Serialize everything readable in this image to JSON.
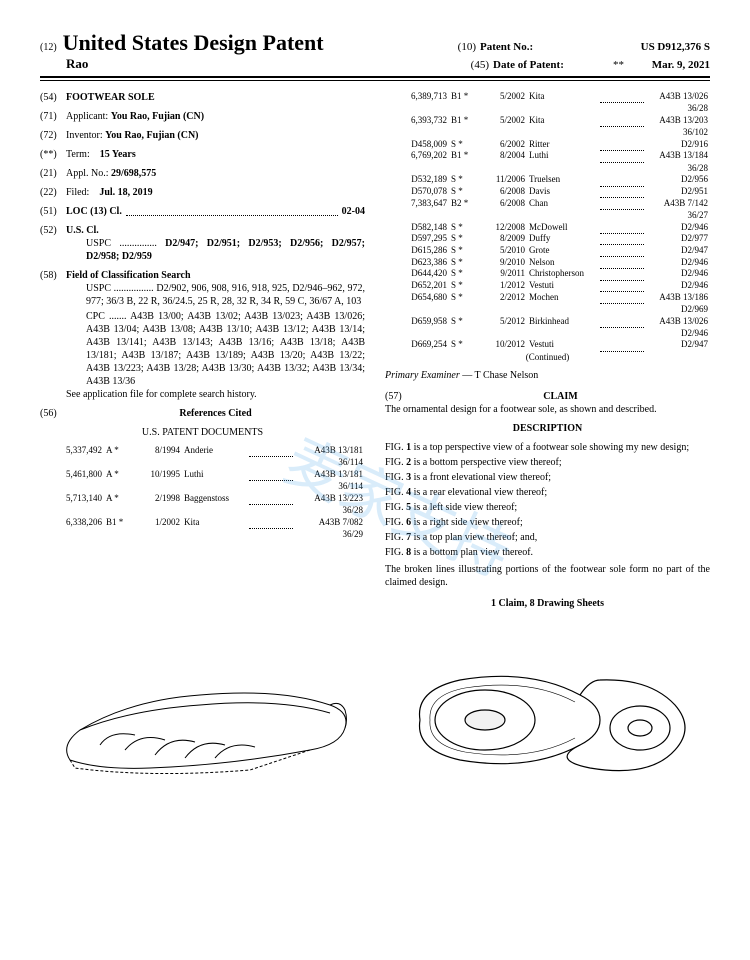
{
  "header": {
    "code12": "(12)",
    "title": "United States Design Patent",
    "name": "Rao",
    "code10": "(10)",
    "patentNoLabel": "Patent No.:",
    "patentNo": "US D912,376 S",
    "code45": "(45)",
    "dateLabel": "Date of Patent:",
    "stars": "**",
    "date": "Mar. 9, 2021"
  },
  "left": {
    "f54": {
      "num": "(54)",
      "label": "FOOTWEAR SOLE"
    },
    "f71": {
      "num": "(71)",
      "label": "Applicant:",
      "val": "You Rao, Fujian (CN)"
    },
    "f72": {
      "num": "(72)",
      "label": "Inventor:",
      "val": "You Rao, Fujian (CN)"
    },
    "fTerm": {
      "num": "(**)",
      "label": "Term:",
      "val": "15 Years"
    },
    "f21": {
      "num": "(21)",
      "label": "Appl. No.:",
      "val": "29/698,575"
    },
    "f22": {
      "num": "(22)",
      "label": "Filed:",
      "val": "Jul. 18, 2019"
    },
    "f51": {
      "num": "(51)",
      "label": "LOC (13) Cl.",
      "val": "02-04"
    },
    "f52": {
      "num": "(52)",
      "label": "U.S. Cl.",
      "uspc": "USPC ...............",
      "uspcVal": "D2/947; D2/951; D2/953; D2/956; D2/957; D2/958; D2/959"
    },
    "f58": {
      "num": "(58)",
      "label": "Field of Classification Search",
      "uspc": "USPC ................ D2/902, 906, 908, 916, 918, 925, D2/946–962, 972, 977; 36/3 B, 22 R, 36/24.5, 25 R, 28, 32 R, 34 R, 59 C, 36/67 A, 103",
      "cpc": "CPC ....... A43B 13/00; A43B 13/02; A43B 13/023; A43B 13/026; A43B 13/04; A43B 13/08; A43B 13/10; A43B 13/12; A43B 13/14; A43B 13/141; A43B 13/143; A43B 13/16; A43B 13/18; A43B 13/181; A43B 13/187; A43B 13/189; A43B 13/20; A43B 13/22; A43B 13/223; A43B 13/28; A43B 13/30; A43B 13/32; A43B 13/34; A43B 13/36",
      "see": "See application file for complete search history."
    },
    "f56": {
      "num": "(56)",
      "label": "References Cited",
      "sub": "U.S. PATENT DOCUMENTS"
    },
    "refs1": [
      {
        "no": "5,337,492",
        "t": "A *",
        "d": "8/1994",
        "n": "Anderie",
        "c": "A43B 13/181",
        "s": "36/114"
      },
      {
        "no": "5,461,800",
        "t": "A *",
        "d": "10/1995",
        "n": "Luthi",
        "c": "A43B 13/181",
        "s": "36/114"
      },
      {
        "no": "5,713,140",
        "t": "A *",
        "d": "2/1998",
        "n": "Baggenstoss",
        "c": "A43B 13/223",
        "s": "36/28"
      },
      {
        "no": "6,338,206",
        "t": "B1 *",
        "d": "1/2002",
        "n": "Kita",
        "c": "A43B 7/082",
        "s": "36/29"
      }
    ]
  },
  "right": {
    "refs2": [
      {
        "no": "6,389,713",
        "t": "B1 *",
        "d": "5/2002",
        "n": "Kita",
        "c": "A43B 13/026",
        "s": "36/28"
      },
      {
        "no": "6,393,732",
        "t": "B1 *",
        "d": "5/2002",
        "n": "Kita",
        "c": "A43B 13/203",
        "s": "36/102"
      },
      {
        "no": "D458,009",
        "t": "S *",
        "d": "6/2002",
        "n": "Ritter",
        "c": "D2/916",
        "s": ""
      },
      {
        "no": "6,769,202",
        "t": "B1 *",
        "d": "8/2004",
        "n": "Luthi",
        "c": "A43B 13/184",
        "s": "36/28"
      },
      {
        "no": "D532,189",
        "t": "S *",
        "d": "11/2006",
        "n": "Truelsen",
        "c": "D2/956",
        "s": ""
      },
      {
        "no": "D570,078",
        "t": "S *",
        "d": "6/2008",
        "n": "Davis",
        "c": "D2/951",
        "s": ""
      },
      {
        "no": "7,383,647",
        "t": "B2 *",
        "d": "6/2008",
        "n": "Chan",
        "c": "A43B 7/142",
        "s": "36/27"
      },
      {
        "no": "D582,148",
        "t": "S *",
        "d": "12/2008",
        "n": "McDowell",
        "c": "D2/946",
        "s": ""
      },
      {
        "no": "D597,295",
        "t": "S *",
        "d": "8/2009",
        "n": "Duffy",
        "c": "D2/977",
        "s": ""
      },
      {
        "no": "D615,286",
        "t": "S *",
        "d": "5/2010",
        "n": "Grote",
        "c": "D2/947",
        "s": ""
      },
      {
        "no": "D623,386",
        "t": "S *",
        "d": "9/2010",
        "n": "Nelson",
        "c": "D2/946",
        "s": ""
      },
      {
        "no": "D644,420",
        "t": "S *",
        "d": "9/2011",
        "n": "Christopherson",
        "c": "D2/946",
        "s": ""
      },
      {
        "no": "D652,201",
        "t": "S *",
        "d": "1/2012",
        "n": "Vestuti",
        "c": "D2/946",
        "s": ""
      },
      {
        "no": "D654,680",
        "t": "S *",
        "d": "2/2012",
        "n": "Mochen",
        "c": "A43B 13/186",
        "s": "D2/969"
      },
      {
        "no": "D659,958",
        "t": "S *",
        "d": "5/2012",
        "n": "Birkinhead",
        "c": "A43B 13/026",
        "s": "D2/946"
      },
      {
        "no": "D669,254",
        "t": "S *",
        "d": "10/2012",
        "n": "Vestuti",
        "c": "D2/947",
        "s": ""
      }
    ],
    "continued": "(Continued)",
    "examinerLabel": "Primary Examiner",
    "examiner": "— T Chase Nelson",
    "claimNum": "(57)",
    "claimTitle": "CLAIM",
    "claimBody": "The ornamental design for a footwear sole, as shown and described.",
    "descTitle": "DESCRIPTION",
    "figs": [
      "FIG. 1 is a top perspective view of a footwear sole showing my new design;",
      "FIG. 2 is a bottom perspective view thereof;",
      "FIG. 3 is a front elevational view thereof;",
      "FIG. 4 is a rear elevational view thereof;",
      "FIG. 5 is a left side view thereof;",
      "FIG. 6 is a right side view thereof;",
      "FIG. 7 is a top plan view thereof; and,",
      "FIG. 8 is a bottom plan view thereof."
    ],
    "broken": "The broken lines illustrating portions of the footwear sole form no part of the claimed design.",
    "footer": "1 Claim, 8 Drawing Sheets"
  },
  "watermark": "麦家支持"
}
